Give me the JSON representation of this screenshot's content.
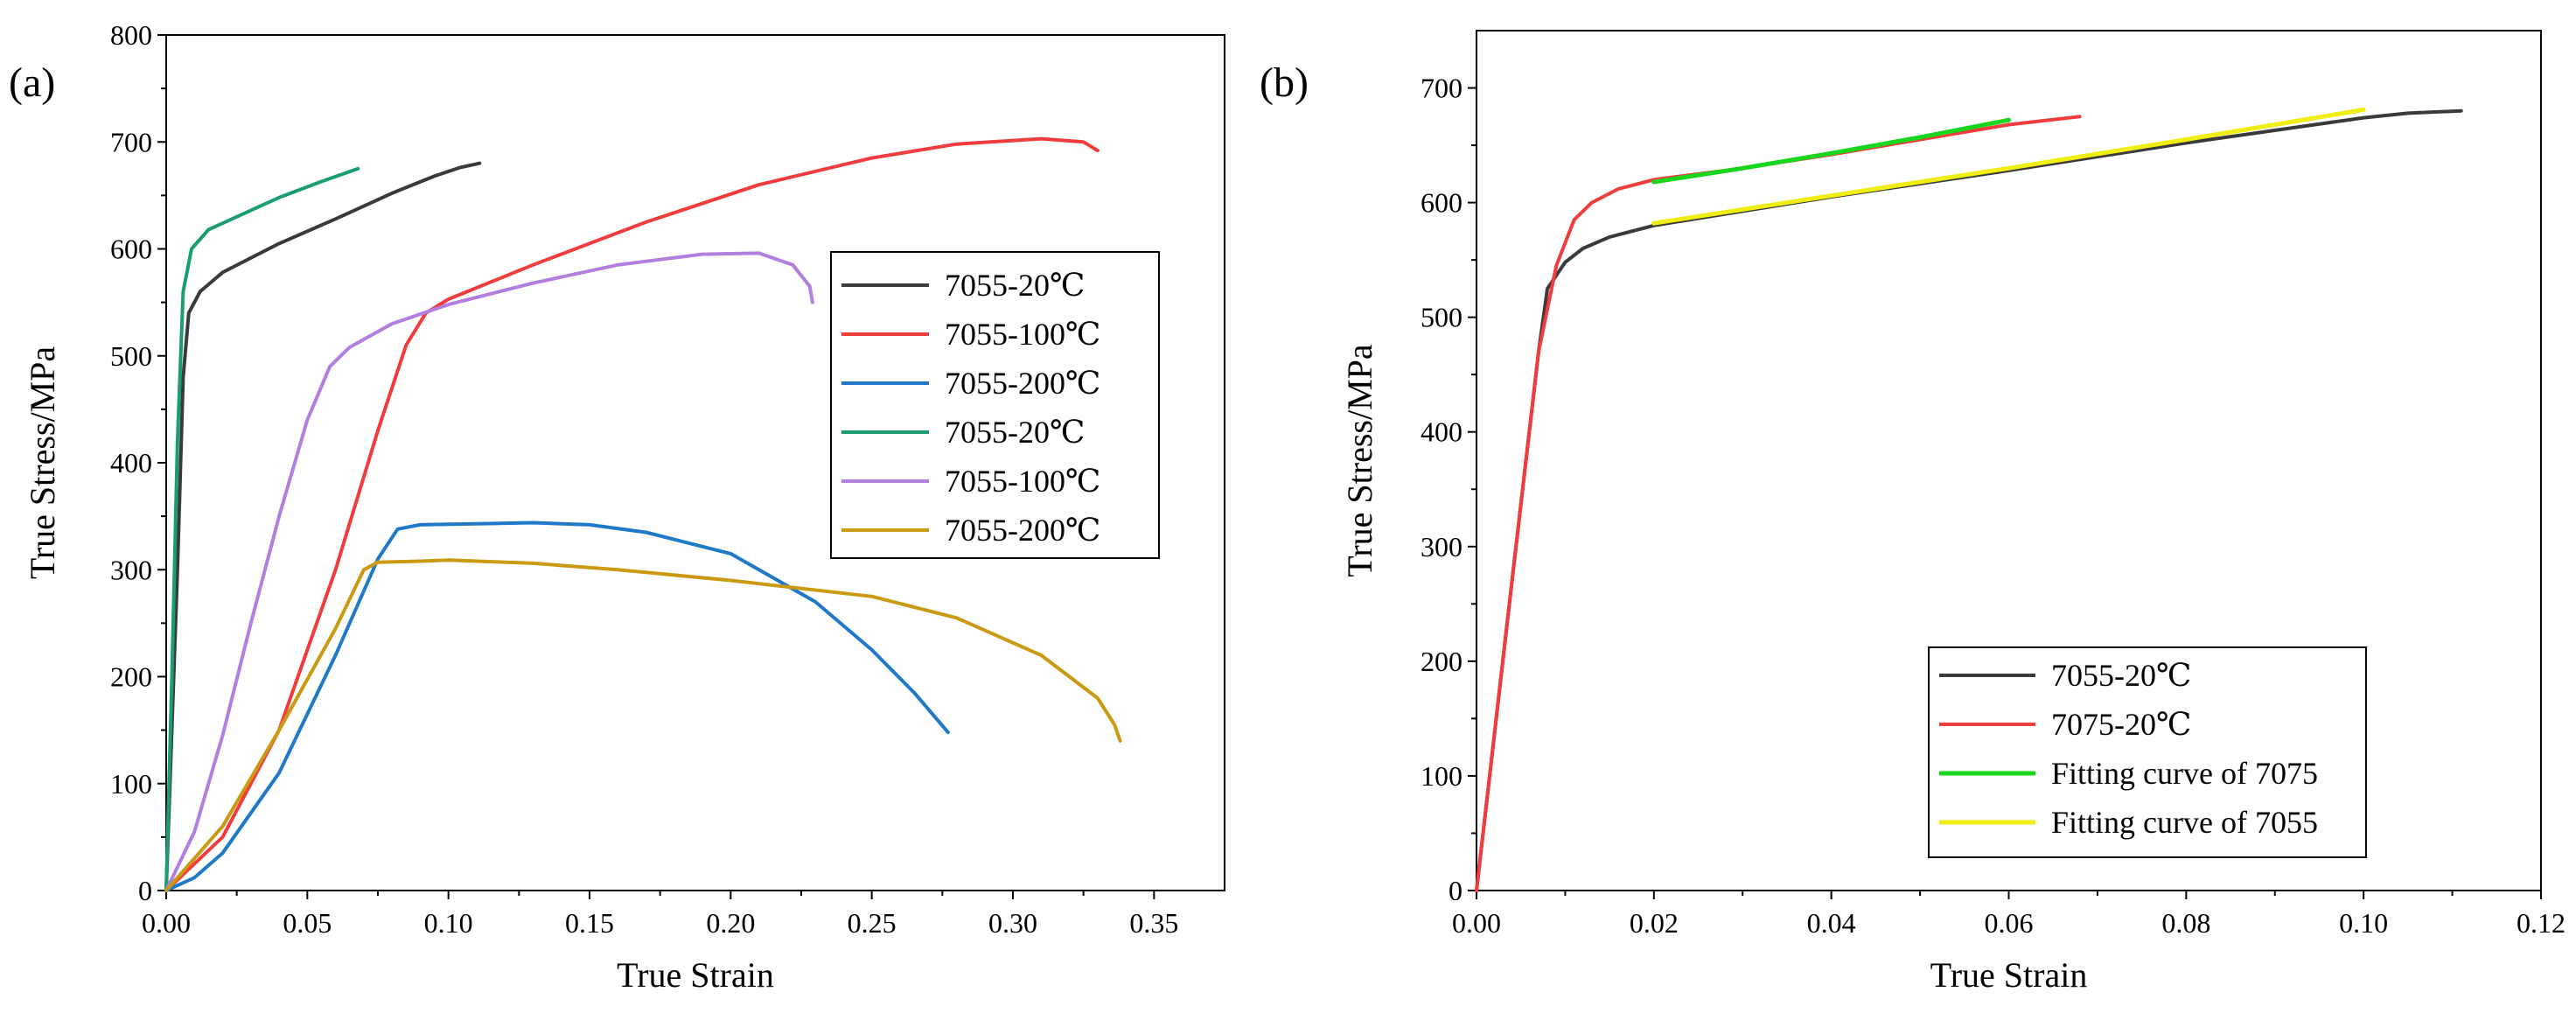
{
  "chart_data": [
    {
      "type": "line",
      "panel_label": "(a)",
      "xlabel": "True Strain",
      "ylabel": "True Stress/MPa",
      "xlim": [
        0.0,
        0.375
      ],
      "ylim": [
        0,
        800
      ],
      "xticks": [
        "0.00",
        "0.05",
        "0.10",
        "0.15",
        "0.20",
        "0.25",
        "0.30",
        "0.35"
      ],
      "yticks": [
        "0",
        "100",
        "200",
        "300",
        "400",
        "500",
        "600",
        "700",
        "800"
      ],
      "legend_position": "center-right",
      "series": [
        {
          "name": "7055-20℃",
          "color": "#3a3a3a",
          "points": [
            [
              0,
              0
            ],
            [
              0.004,
              300
            ],
            [
              0.006,
              480
            ],
            [
              0.008,
              540
            ],
            [
              0.012,
              560
            ],
            [
              0.02,
              578
            ],
            [
              0.04,
              605
            ],
            [
              0.06,
              628
            ],
            [
              0.08,
              652
            ],
            [
              0.095,
              668
            ],
            [
              0.104,
              676
            ],
            [
              0.111,
              680
            ]
          ]
        },
        {
          "name": "7055-100℃",
          "color": "#f03c3c",
          "points": [
            [
              0,
              0
            ],
            [
              0.02,
              50
            ],
            [
              0.04,
              150
            ],
            [
              0.06,
              300
            ],
            [
              0.075,
              430
            ],
            [
              0.085,
              510
            ],
            [
              0.092,
              540
            ],
            [
              0.1,
              553
            ],
            [
              0.13,
              585
            ],
            [
              0.17,
              625
            ],
            [
              0.21,
              660
            ],
            [
              0.25,
              685
            ],
            [
              0.28,
              698
            ],
            [
              0.31,
              703
            ],
            [
              0.325,
              700
            ],
            [
              0.33,
              692
            ]
          ]
        },
        {
          "name": "7055-200℃",
          "color": "#1f78c8",
          "points": [
            [
              0,
              0
            ],
            [
              0.01,
              12
            ],
            [
              0.02,
              35
            ],
            [
              0.04,
              110
            ],
            [
              0.06,
              220
            ],
            [
              0.075,
              310
            ],
            [
              0.082,
              338
            ],
            [
              0.09,
              342
            ],
            [
              0.11,
              343
            ],
            [
              0.13,
              344
            ],
            [
              0.15,
              342
            ],
            [
              0.17,
              335
            ],
            [
              0.2,
              315
            ],
            [
              0.23,
              270
            ],
            [
              0.25,
              225
            ],
            [
              0.265,
              185
            ],
            [
              0.277,
              148
            ]
          ]
        },
        {
          "name": "7055-20℃",
          "color": "#1a9e6e",
          "points": [
            [
              0,
              0
            ],
            [
              0.002,
              200
            ],
            [
              0.004,
              420
            ],
            [
              0.006,
              560
            ],
            [
              0.009,
              600
            ],
            [
              0.015,
              618
            ],
            [
              0.025,
              630
            ],
            [
              0.04,
              648
            ],
            [
              0.055,
              663
            ],
            [
              0.068,
              675
            ]
          ]
        },
        {
          "name": "7055-100℃",
          "color": "#b27fe0",
          "points": [
            [
              0,
              0
            ],
            [
              0.01,
              55
            ],
            [
              0.02,
              145
            ],
            [
              0.03,
              250
            ],
            [
              0.04,
              350
            ],
            [
              0.05,
              440
            ],
            [
              0.058,
              490
            ],
            [
              0.065,
              508
            ],
            [
              0.08,
              530
            ],
            [
              0.1,
              548
            ],
            [
              0.13,
              568
            ],
            [
              0.16,
              585
            ],
            [
              0.19,
              595
            ],
            [
              0.21,
              596
            ],
            [
              0.222,
              585
            ],
            [
              0.228,
              565
            ],
            [
              0.229,
              550
            ]
          ]
        },
        {
          "name": "7055-200℃",
          "color": "#c99a12",
          "points": [
            [
              0,
              0
            ],
            [
              0.02,
              60
            ],
            [
              0.04,
              150
            ],
            [
              0.06,
              245
            ],
            [
              0.07,
              300
            ],
            [
              0.075,
              307
            ],
            [
              0.09,
              308
            ],
            [
              0.1,
              309
            ],
            [
              0.13,
              306
            ],
            [
              0.16,
              300
            ],
            [
              0.2,
              290
            ],
            [
              0.25,
              275
            ],
            [
              0.28,
              255
            ],
            [
              0.31,
              220
            ],
            [
              0.33,
              180
            ],
            [
              0.336,
              155
            ],
            [
              0.338,
              140
            ]
          ]
        }
      ]
    },
    {
      "type": "line",
      "panel_label": "(b)",
      "xlabel": "True Strain",
      "ylabel": "True Stress/MPa",
      "xlim": [
        0.0,
        0.12
      ],
      "ylim": [
        0,
        750
      ],
      "xticks": [
        "0.00",
        "0.02",
        "0.04",
        "0.06",
        "0.08",
        "0.10",
        "0.12"
      ],
      "yticks": [
        "0",
        "100",
        "200",
        "300",
        "400",
        "500",
        "600",
        "700"
      ],
      "legend_position": "bottom-right",
      "series": [
        {
          "name": "7055-20℃",
          "color": "#3a3a3a",
          "points": [
            [
              0,
              0
            ],
            [
              0.004,
              270
            ],
            [
              0.007,
              470
            ],
            [
              0.008,
              525
            ],
            [
              0.01,
              548
            ],
            [
              0.012,
              560
            ],
            [
              0.015,
              570
            ],
            [
              0.02,
              580
            ],
            [
              0.04,
              605
            ],
            [
              0.06,
              628
            ],
            [
              0.08,
              652
            ],
            [
              0.1,
              674
            ],
            [
              0.105,
              678
            ],
            [
              0.111,
              680
            ]
          ]
        },
        {
          "name": "7075-20℃",
          "color": "#f03c3c",
          "points": [
            [
              0,
              0
            ],
            [
              0.004,
              270
            ],
            [
              0.007,
              470
            ],
            [
              0.009,
              545
            ],
            [
              0.011,
              585
            ],
            [
              0.013,
              600
            ],
            [
              0.016,
              612
            ],
            [
              0.02,
              620
            ],
            [
              0.03,
              630
            ],
            [
              0.04,
              642
            ],
            [
              0.05,
              655
            ],
            [
              0.06,
              668
            ],
            [
              0.068,
              675
            ]
          ]
        },
        {
          "name": "Fitting curve of 7075",
          "color": "#16d61e",
          "points": [
            [
              0.02,
              618
            ],
            [
              0.03,
              630
            ],
            [
              0.04,
              643
            ],
            [
              0.05,
              657
            ],
            [
              0.06,
              672
            ]
          ]
        },
        {
          "name": "Fitting curve of 7055",
          "color": "#eeee10",
          "points": [
            [
              0.02,
              582
            ],
            [
              0.04,
              606
            ],
            [
              0.06,
              630
            ],
            [
              0.08,
              655
            ],
            [
              0.1,
              681
            ]
          ]
        }
      ]
    }
  ]
}
